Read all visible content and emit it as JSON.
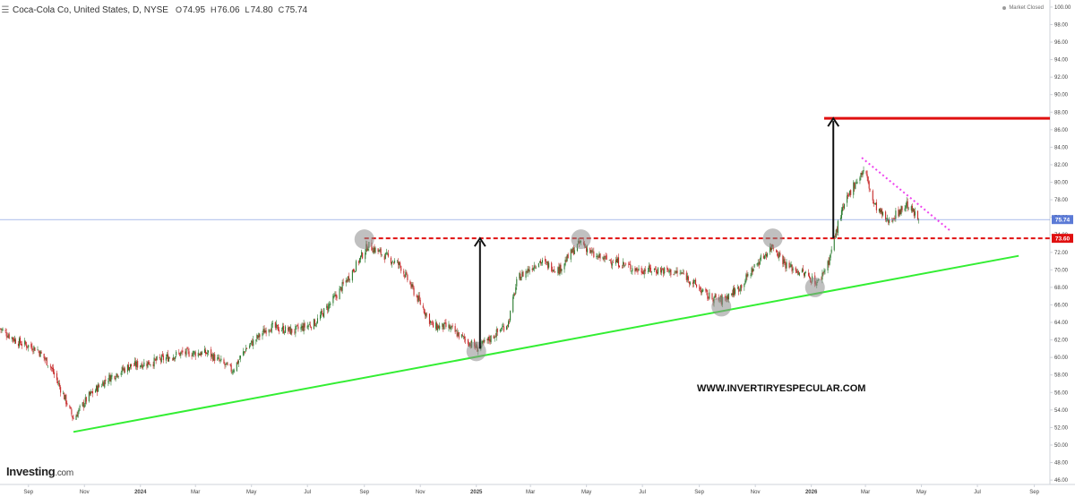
{
  "header": {
    "menu_icon": "hamburger-menu-icon",
    "symbol": "Coca-Cola Co, United States, D, NYSE",
    "open_label": "O",
    "open": "74.95",
    "high_label": "H",
    "high": "76.06",
    "low_label": "L",
    "low": "74.80",
    "close_label": "C",
    "close": "75.74"
  },
  "status": {
    "label": "Market Closed",
    "icon": "status-dot-icon"
  },
  "branding": {
    "name": "Investing",
    "suffix": ".com"
  },
  "watermark": "WWW.INVERTIRYESPECULAR.COM",
  "colors": {
    "up_candle": "#2e7d32",
    "down_candle": "#c62828",
    "last_price": "#5b7ad6",
    "resistance": "#e01010",
    "support": "#33ee33",
    "target": "#e01010",
    "down_trend": "#ee44ee",
    "arrow": "#111111",
    "pivot": "#8c8c8c"
  },
  "chart_data": {
    "type": "candlestick",
    "ylim": [
      45.5,
      100.5
    ],
    "y_ticks": [
      46,
      48,
      50,
      52,
      54,
      56,
      58,
      60,
      62,
      64,
      66,
      68,
      70,
      72,
      74,
      76,
      78,
      80,
      82,
      84,
      86,
      88,
      90,
      92,
      94,
      96,
      98,
      100
    ],
    "x_ticks": [
      "Sep",
      "Nov",
      "2024",
      "Mar",
      "May",
      "Jul",
      "Sep",
      "Nov",
      "2025",
      "Mar",
      "May",
      "Jul",
      "Sep",
      "Nov",
      "2026",
      "Mar",
      "May",
      "Jul",
      "Sep"
    ],
    "x_tick_dates": [
      "2023-09-01",
      "2023-11-01",
      "2024-01-01",
      "2024-03-01",
      "2024-05-01",
      "2024-07-01",
      "2024-09-01",
      "2024-11-01",
      "2025-01-01",
      "2025-03-01",
      "2025-05-01",
      "2025-07-01",
      "2025-09-01",
      "2025-11-01",
      "2026-01-01",
      "2026-03-01",
      "2026-05-01",
      "2026-07-01",
      "2026-09-01"
    ],
    "x_range": [
      "2023-08-01",
      "2026-09-18"
    ],
    "last_price": 75.74,
    "price_path": [
      [
        "2023-08-01",
        63.3
      ],
      [
        "2023-08-20",
        61.8
      ],
      [
        "2023-09-10",
        61.0
      ],
      [
        "2023-09-25",
        59.0
      ],
      [
        "2023-10-10",
        55.5
      ],
      [
        "2023-10-20",
        53.0
      ],
      [
        "2023-11-05",
        55.5
      ],
      [
        "2023-11-25",
        57.5
      ],
      [
        "2023-12-20",
        59.0
      ],
      [
        "2024-01-15",
        59.5
      ],
      [
        "2024-02-15",
        60.5
      ],
      [
        "2024-03-15",
        60.5
      ],
      [
        "2024-04-10",
        58.5
      ],
      [
        "2024-04-25",
        61.0
      ],
      [
        "2024-05-20",
        63.5
      ],
      [
        "2024-06-15",
        63.0
      ],
      [
        "2024-07-10",
        64.0
      ],
      [
        "2024-08-01",
        67.0
      ],
      [
        "2024-08-20",
        70.0
      ],
      [
        "2024-09-05",
        72.8
      ],
      [
        "2024-09-25",
        71.5
      ],
      [
        "2024-10-10",
        70.5
      ],
      [
        "2024-10-25",
        67.5
      ],
      [
        "2024-11-15",
        63.5
      ],
      [
        "2024-12-01",
        63.5
      ],
      [
        "2024-12-20",
        62.0
      ],
      [
        "2025-01-03",
        61.0
      ],
      [
        "2025-01-20",
        62.5
      ],
      [
        "2025-02-05",
        64.0
      ],
      [
        "2025-02-15",
        69.0
      ],
      [
        "2025-03-10",
        71.0
      ],
      [
        "2025-04-01",
        70.0
      ],
      [
        "2025-04-15",
        72.0
      ],
      [
        "2025-04-25",
        73.2
      ],
      [
        "2025-05-10",
        71.5
      ],
      [
        "2025-06-01",
        71.0
      ],
      [
        "2025-06-25",
        70.0
      ],
      [
        "2025-07-20",
        70.0
      ],
      [
        "2025-08-15",
        69.5
      ],
      [
        "2025-09-10",
        67.0
      ],
      [
        "2025-09-25",
        66.5
      ],
      [
        "2025-10-15",
        68.0
      ],
      [
        "2025-11-01",
        70.5
      ],
      [
        "2025-11-20",
        72.8
      ],
      [
        "2025-12-05",
        70.5
      ],
      [
        "2025-12-25",
        69.5
      ],
      [
        "2026-01-08",
        68.5
      ],
      [
        "2026-01-20",
        71.0
      ],
      [
        "2026-02-01",
        76.0
      ],
      [
        "2026-02-15",
        79.5
      ],
      [
        "2026-02-28",
        81.5
      ],
      [
        "2026-03-10",
        77.5
      ],
      [
        "2026-03-25",
        75.5
      ],
      [
        "2026-04-05",
        76.5
      ],
      [
        "2026-04-15",
        77.5
      ],
      [
        "2026-04-28",
        75.74
      ]
    ],
    "annotations": {
      "resistance": {
        "y": 73.6,
        "from": "2024-09-01",
        "to": "2026-09-18",
        "label": "73.60"
      },
      "support_trendline": {
        "from": [
          "2023-10-20",
          51.5
        ],
        "to": [
          "2026-08-15",
          71.6
        ]
      },
      "target": {
        "y": 87.3,
        "from": "2026-01-15",
        "to": "2026-09-18"
      },
      "down_trendline": {
        "from": [
          "2026-02-25",
          82.8
        ],
        "to": [
          "2026-06-01",
          74.5
        ]
      },
      "arrows": [
        {
          "x": "2025-01-05",
          "from": 61.0,
          "to": 73.6
        },
        {
          "x": "2026-01-25",
          "from": 73.6,
          "to": 87.3
        }
      ],
      "pivots": [
        [
          "2024-09-01",
          73.5
        ],
        [
          "2025-01-01",
          60.7
        ],
        [
          "2025-04-25",
          73.5
        ],
        [
          "2025-09-25",
          65.8
        ],
        [
          "2025-11-20",
          73.6
        ],
        [
          "2026-01-05",
          68.0
        ]
      ]
    }
  }
}
